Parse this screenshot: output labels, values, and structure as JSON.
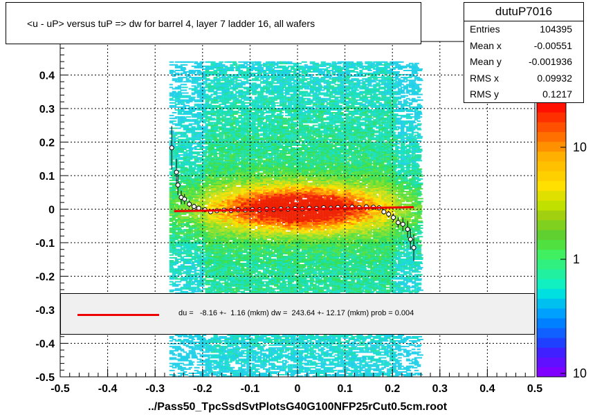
{
  "title": "<u - uP>       versus  tuP =>  dw for barrel 4, layer 7 ladder 16, all wafers",
  "stats": {
    "name": "dutuP7016",
    "rows": [
      {
        "key": "Entries",
        "value": "104395"
      },
      {
        "key": "Mean x",
        "value": "-0.00551"
      },
      {
        "key": "Mean y",
        "value": "-0.001936"
      },
      {
        "key": "RMS x",
        "value": "0.09932"
      },
      {
        "key": "RMS y",
        "value": "0.1217"
      }
    ]
  },
  "legend": {
    "fit_text": "du =   -8.16 +-  1.16 (mkm) dw =  243.64 +- 12.17 (mkm) prob = 0.004",
    "line_color": "#ee0000"
  },
  "chart_data": {
    "type": "heatmap",
    "xlabel": "../Pass50_TpcSsdSvtPlotsG40G100NFP25rCut0.5cm.root",
    "xlim": [
      -0.5,
      0.5
    ],
    "ylim": [
      -0.5,
      0.5
    ],
    "x_ticks": [
      "-0.5",
      "-0.4",
      "-0.3",
      "-0.2",
      "-0.1",
      "0",
      "0.1",
      "0.2",
      "0.3",
      "0.4",
      "0.5"
    ],
    "y_ticks": [
      "-0.5",
      "-0.4",
      "-0.3",
      "-0.2",
      "-0.1",
      "0",
      "0.1",
      "0.2",
      "0.3",
      "0.4"
    ],
    "grid": true,
    "colorbar": {
      "scale": "log",
      "labels": [
        "10",
        "1",
        "10"
      ]
    },
    "profile_points": [
      {
        "x": -0.265,
        "y": 0.183,
        "err": 0.065
      },
      {
        "x": -0.255,
        "y": 0.11,
        "err": 0.04
      },
      {
        "x": -0.252,
        "y": 0.072,
        "err": 0.03
      },
      {
        "x": -0.245,
        "y": 0.035,
        "err": 0.02
      },
      {
        "x": -0.238,
        "y": 0.03,
        "err": 0.015
      },
      {
        "x": -0.228,
        "y": 0.015,
        "err": 0.01
      },
      {
        "x": -0.218,
        "y": 0.008,
        "err": 0.008
      },
      {
        "x": -0.208,
        "y": 0.003,
        "err": 0.006
      },
      {
        "x": -0.195,
        "y": -0.002,
        "err": 0.005
      },
      {
        "x": -0.183,
        "y": -0.008,
        "err": 0.005
      },
      {
        "x": -0.17,
        "y": -0.005,
        "err": 0.004
      },
      {
        "x": -0.155,
        "y": -0.003,
        "err": 0.004
      },
      {
        "x": -0.14,
        "y": -0.004,
        "err": 0.004
      },
      {
        "x": -0.125,
        "y": -0.002,
        "err": 0.003
      },
      {
        "x": -0.11,
        "y": -0.003,
        "err": 0.003
      },
      {
        "x": -0.095,
        "y": -0.001,
        "err": 0.003
      },
      {
        "x": -0.08,
        "y": -0.002,
        "err": 0.003
      },
      {
        "x": -0.065,
        "y": 0.0,
        "err": 0.003
      },
      {
        "x": -0.05,
        "y": -0.001,
        "err": 0.003
      },
      {
        "x": -0.035,
        "y": 0.001,
        "err": 0.003
      },
      {
        "x": -0.02,
        "y": 0.0,
        "err": 0.003
      },
      {
        "x": -0.005,
        "y": 0.002,
        "err": 0.003
      },
      {
        "x": 0.01,
        "y": 0.001,
        "err": 0.003
      },
      {
        "x": 0.025,
        "y": 0.003,
        "err": 0.003
      },
      {
        "x": 0.04,
        "y": 0.002,
        "err": 0.003
      },
      {
        "x": 0.055,
        "y": 0.004,
        "err": 0.003
      },
      {
        "x": 0.07,
        "y": 0.003,
        "err": 0.003
      },
      {
        "x": 0.085,
        "y": 0.005,
        "err": 0.003
      },
      {
        "x": 0.1,
        "y": 0.004,
        "err": 0.003
      },
      {
        "x": 0.115,
        "y": 0.006,
        "err": 0.004
      },
      {
        "x": 0.13,
        "y": 0.005,
        "err": 0.004
      },
      {
        "x": 0.145,
        "y": 0.007,
        "err": 0.004
      },
      {
        "x": 0.16,
        "y": 0.006,
        "err": 0.005
      },
      {
        "x": 0.172,
        "y": 0.004,
        "err": 0.006
      },
      {
        "x": 0.182,
        "y": -0.008,
        "err": 0.008
      },
      {
        "x": 0.192,
        "y": -0.015,
        "err": 0.01
      },
      {
        "x": 0.202,
        "y": -0.025,
        "err": 0.012
      },
      {
        "x": 0.212,
        "y": -0.04,
        "err": 0.015
      },
      {
        "x": 0.222,
        "y": -0.045,
        "err": 0.02
      },
      {
        "x": 0.232,
        "y": -0.06,
        "err": 0.025
      },
      {
        "x": 0.238,
        "y": -0.09,
        "err": 0.03
      },
      {
        "x": 0.245,
        "y": -0.115,
        "err": 0.04
      }
    ],
    "fit_line": {
      "x": [
        -0.26,
        0.245
      ],
      "y": [
        -0.006,
        0.006
      ]
    }
  }
}
